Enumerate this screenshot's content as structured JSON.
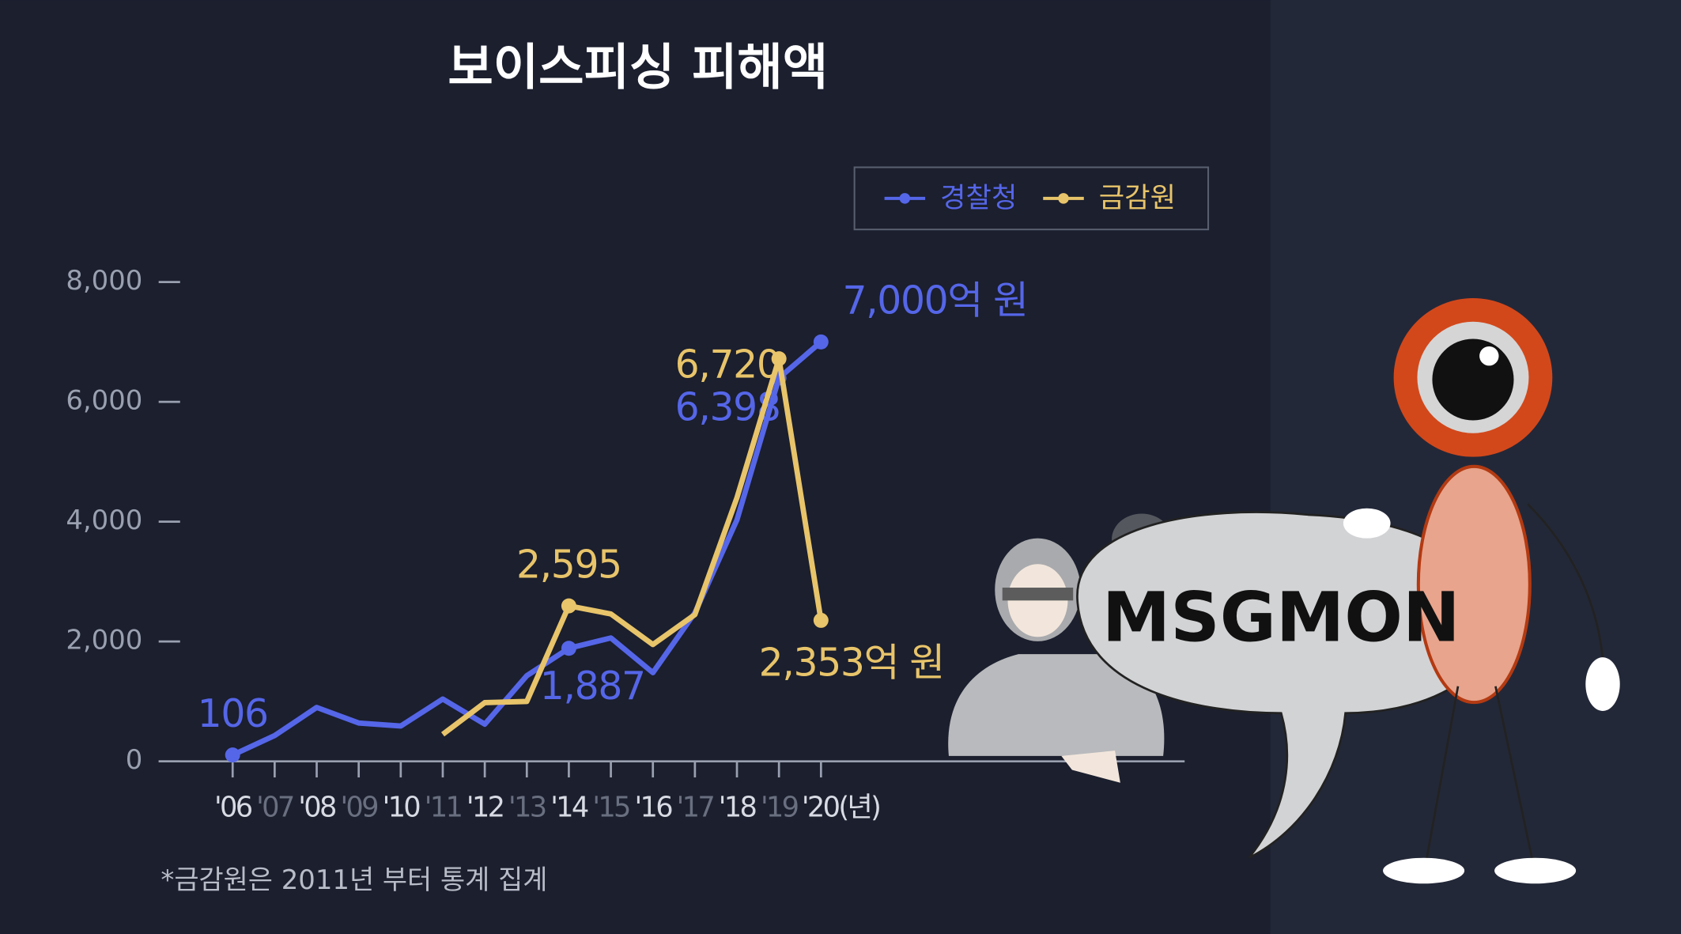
{
  "chart_data": {
    "type": "line",
    "title": "보이스피싱 피해액",
    "categories": [
      "'06",
      "'07",
      "'08",
      "'09",
      "'10",
      "'11",
      "'12",
      "'13",
      "'14",
      "'15",
      "'16",
      "'17",
      "'18",
      "'19",
      "'20(년)"
    ],
    "series": [
      {
        "name": "경찰청",
        "color": "#5566e8",
        "values": [
          106,
          430,
          900,
          640,
          590,
          1040,
          620,
          1430,
          1887,
          2060,
          1480,
          2480,
          4030,
          6398,
          7000
        ],
        "value_labels": [
          "106",
          null,
          null,
          null,
          null,
          null,
          null,
          null,
          "1,887",
          null,
          null,
          null,
          null,
          "6,398",
          "7,000억 원"
        ]
      },
      {
        "name": "금감원",
        "color": "#e8c46a",
        "values": [
          null,
          null,
          null,
          null,
          null,
          450,
          980,
          1000,
          2595,
          2460,
          1950,
          2450,
          4400,
          6720,
          2353
        ],
        "value_labels": [
          null,
          null,
          null,
          null,
          null,
          null,
          null,
          null,
          "2,595",
          null,
          null,
          null,
          null,
          "6,720",
          "2,353억 원"
        ]
      }
    ],
    "ylim": [
      0,
      8000
    ],
    "yticks": [
      0,
      {
        "value": 2000,
        "label": "2,000"
      },
      {
        "value": 4000,
        "label": "4,000"
      },
      {
        "value": 6000,
        "label": "6,000"
      },
      {
        "value": 8000,
        "label": "8,000"
      }
    ],
    "legend": "top-right",
    "note": "*금감원은 2011년 부터 통계 집계"
  },
  "watermark": {
    "text": "MSGMON"
  }
}
